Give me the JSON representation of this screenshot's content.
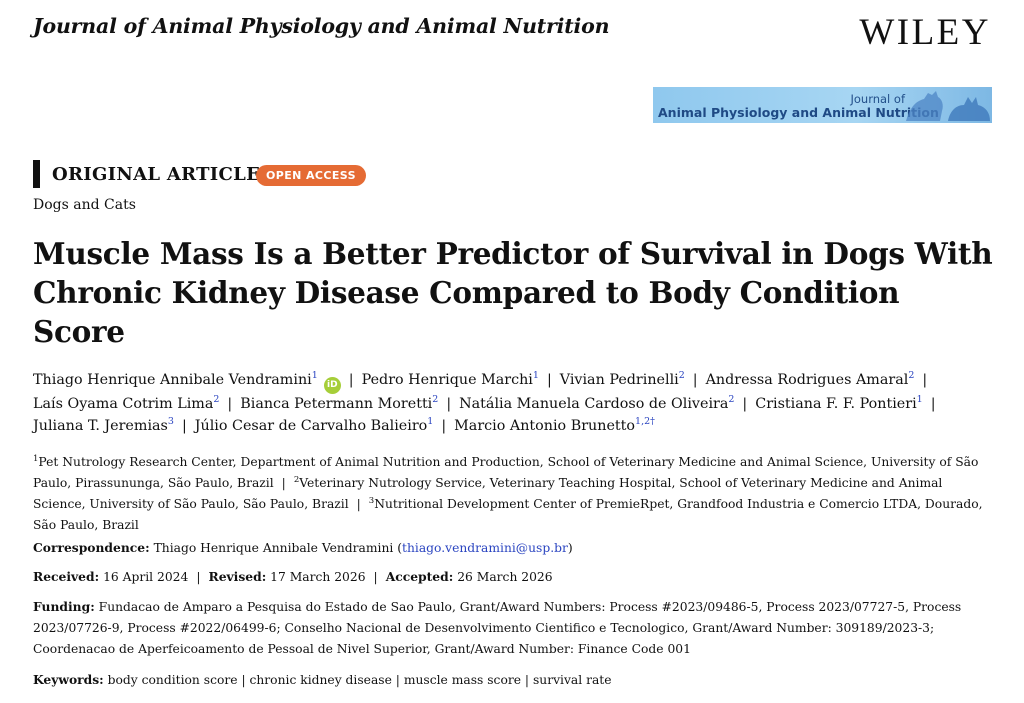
{
  "header": {
    "journal": "Journal of Animal Physiology and Animal Nutrition",
    "publisher": "WILEY",
    "banner_line1": "Journal of",
    "banner_line2": "Animal Physiology and Animal Nutrition"
  },
  "article": {
    "type": "ORIGINAL ARTICLE",
    "access_badge": "OPEN ACCESS",
    "section": "Dogs and Cats",
    "title": "Muscle Mass Is a Better Predictor of Survival in Dogs With Chronic Kidney Disease Compared to Body Condition Score"
  },
  "authors": [
    {
      "name": "Thiago Henrique Annibale Vendramini",
      "sup": "1"
    },
    {
      "name": "Pedro Henrique Marchi",
      "sup": "1"
    },
    {
      "name": "Vivian Pedrinelli",
      "sup": "2"
    },
    {
      "name": "Andressa Rodrigues Amaral",
      "sup": "2"
    },
    {
      "name": "Laís Oyama Cotrim Lima",
      "sup": "2"
    },
    {
      "name": "Bianca Petermann Moretti",
      "sup": "2"
    },
    {
      "name": "Natália Manuela Cardoso de Oliveira",
      "sup": "2"
    },
    {
      "name": "Cristiana F. F. Pontieri",
      "sup": "1"
    },
    {
      "name": "Juliana T. Jeremias",
      "sup": "3"
    },
    {
      "name": "Júlio Cesar de Carvalho Balieiro",
      "sup": "1"
    },
    {
      "name": "Marcio Antonio Brunetto",
      "sup": "1,2†"
    }
  ],
  "orcid_label": "iD",
  "separator": "|",
  "affiliations": [
    {
      "sup": "1",
      "text": "Pet Nutrology Research Center, Department of Animal Nutrition and Production, School of Veterinary Medicine and Animal Science, University of São Paulo, Pirassununga, São Paulo, Brazil"
    },
    {
      "sup": "2",
      "text": "Veterinary Nutrology Service, Veterinary Teaching Hospital, School of Veterinary Medicine and Animal Science, University of São Paulo, São Paulo, Brazil"
    },
    {
      "sup": "3",
      "text": "Nutritional Development Center of PremieRpet, Grandfood Industria e Comercio LTDA, Dourado, São Paulo, Brazil"
    }
  ],
  "correspondence": {
    "label": "Correspondence:",
    "name": "Thiago Henrique Annibale Vendramini",
    "email": "thiago.vendramini@usp.br"
  },
  "dates": {
    "received_label": "Received:",
    "received": "16 April 2024",
    "revised_label": "Revised:",
    "revised": "17 March 2026",
    "accepted_label": "Accepted:",
    "accepted": "26 March 2026"
  },
  "funding": {
    "label": "Funding:",
    "text": "Fundacao de Amparo a Pesquisa do Estado de Sao Paulo, Grant/Award Numbers: Process #2023/09486-5, Process 2023/07727-5, Process 2023/07726-9, Process #2022/06499-6; Conselho Nacional de Desenvolvimento Cientifico e Tecnologico, Grant/Award Number: 309189/2023-3; Coordenacao de Aperfeicoamento de Pessoal de Nivel Superior, Grant/Award Number: Finance Code 001"
  },
  "keywords": {
    "label": "Keywords:",
    "items": [
      "body condition score",
      "chronic kidney disease",
      "muscle mass score",
      "survival rate"
    ]
  }
}
